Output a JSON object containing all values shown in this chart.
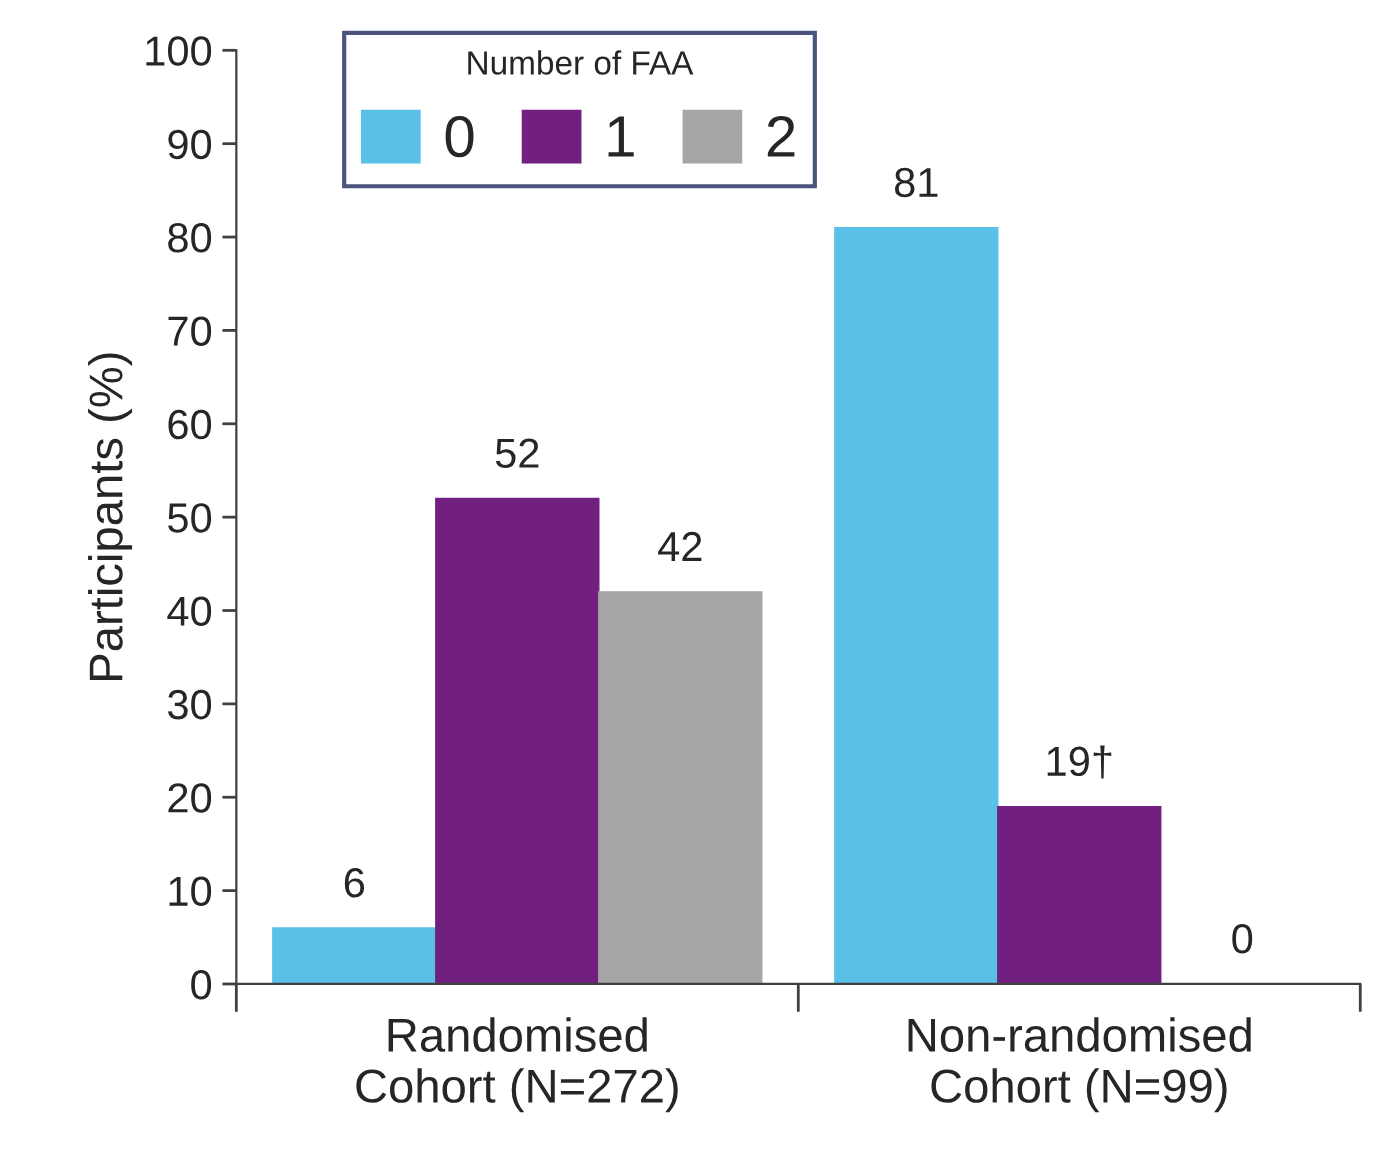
{
  "chart_data": {
    "type": "bar",
    "ylabel": "Participants (%)",
    "legend_title": "Number of FAA",
    "legend": "top left",
    "categories": [
      "Randomised\nCohort (N=272)",
      "Non-randomised\nCohort (N=99)"
    ],
    "series": [
      {
        "name": "0",
        "color": "#5bc0e8",
        "values": [
          6,
          81
        ],
        "value_labels": [
          "6",
          "81"
        ]
      },
      {
        "name": "1",
        "color": "#71207f",
        "values": [
          52,
          19
        ],
        "value_labels": [
          "52",
          "19†"
        ]
      },
      {
        "name": "2",
        "color": "#a6a6a6",
        "values": [
          42,
          0
        ],
        "value_labels": [
          "42",
          "0"
        ]
      }
    ],
    "ylim": [
      0,
      100
    ],
    "yticks": [
      0,
      10,
      20,
      30,
      40,
      50,
      60,
      70,
      80,
      90,
      100
    ],
    "grid": false
  }
}
